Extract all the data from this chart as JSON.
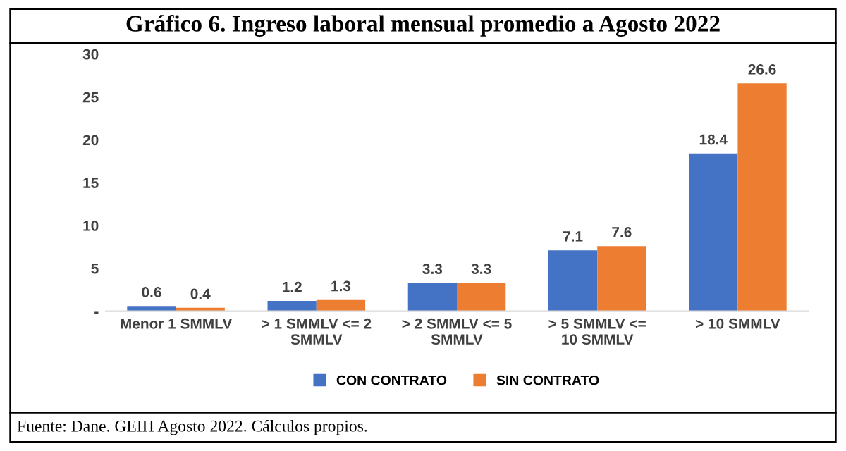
{
  "chart_data": {
    "type": "bar",
    "title": "Gráfico 6. Ingreso laboral mensual promedio a Agosto 2022",
    "categories": [
      "Menor 1 SMMLV",
      "> 1 SMMLV <= 2\nSMMLV",
      "> 2 SMMLV <= 5\nSMMLV",
      "> 5 SMMLV <=\n10 SMMLV",
      "> 10 SMMLV"
    ],
    "series": [
      {
        "name": "CON CONTRATO",
        "color": "#4472c4",
        "values": [
          0.6,
          1.2,
          3.3,
          7.1,
          18.4
        ]
      },
      {
        "name": "SIN CONTRATO",
        "color": "#ed7d31",
        "values": [
          0.4,
          1.3,
          3.3,
          7.6,
          26.6
        ]
      }
    ],
    "ylim": [
      0,
      30
    ],
    "yticks": [
      {
        "value": 0,
        "label": "-"
      },
      5,
      10,
      15,
      20,
      25,
      30
    ],
    "data_labels": true,
    "grid": false,
    "legend": "bottom",
    "annotations": [
      "Fuente: Dane. GEIH Agosto 2022. Cálculos propios."
    ]
  }
}
